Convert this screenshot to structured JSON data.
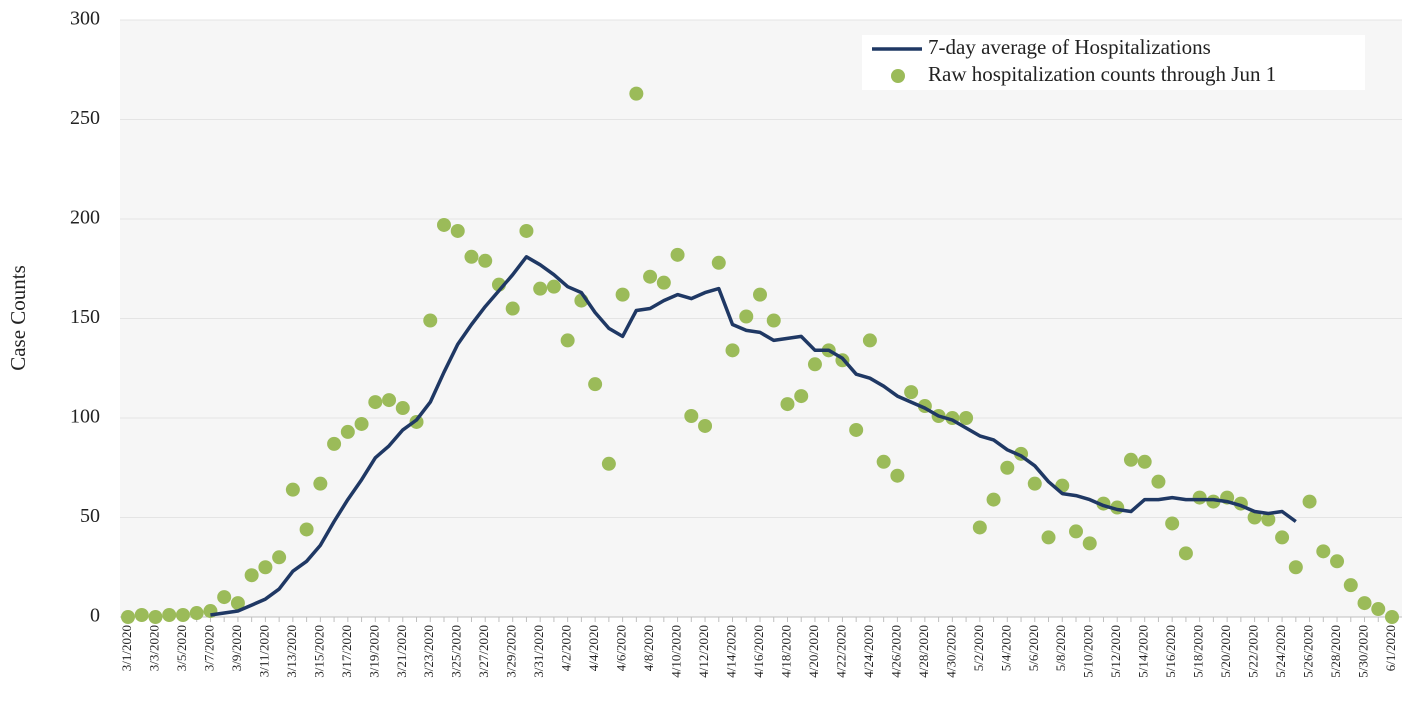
{
  "chart_data": {
    "type": "line",
    "y_label": "Case Counts",
    "categories": [
      "3/1/2020",
      null,
      "3/3/2020",
      null,
      "3/5/2020",
      null,
      "3/7/2020",
      null,
      "3/9/2020",
      null,
      "3/11/2020",
      null,
      "3/13/2020",
      null,
      "3/15/2020",
      null,
      "3/17/2020",
      null,
      "3/19/2020",
      null,
      "3/21/2020",
      null,
      "3/23/2020",
      null,
      "3/25/2020",
      null,
      "3/27/2020",
      null,
      "3/29/2020",
      null,
      "3/31/2020",
      null,
      "4/2/2020",
      null,
      "4/4/2020",
      null,
      "4/6/2020",
      null,
      "4/8/2020",
      null,
      "4/10/2020",
      null,
      "4/12/2020",
      null,
      "4/14/2020",
      null,
      "4/16/2020",
      null,
      "4/18/2020",
      null,
      "4/20/2020",
      null,
      "4/22/2020",
      null,
      "4/24/2020",
      null,
      "4/26/2020",
      null,
      "4/28/2020",
      null,
      "4/30/2020",
      null,
      "5/2/2020",
      null,
      "5/4/2020",
      null,
      "5/6/2020",
      null,
      "5/8/2020",
      null,
      "5/10/2020",
      null,
      "5/12/2020",
      null,
      "5/14/2020",
      null,
      "5/16/2020",
      null,
      "5/18/2020",
      null,
      "5/20/2020",
      null,
      "5/22/2020",
      null,
      "5/24/2020",
      null,
      "5/26/2020",
      null,
      "5/28/2020",
      null,
      "5/30/2020",
      null,
      "6/1/2020"
    ],
    "series": [
      {
        "name": "7-day average of Hospitalizations",
        "color": "#1f3864",
        "style": "line",
        "values": [
          null,
          null,
          null,
          null,
          null,
          null,
          1,
          2,
          3,
          6,
          9,
          14,
          23,
          28,
          36,
          48,
          59,
          69,
          80,
          86,
          94,
          99,
          108,
          123,
          137,
          147,
          156,
          164,
          172,
          181,
          177,
          172,
          166,
          163,
          153,
          145,
          141,
          154,
          155,
          159,
          162,
          160,
          163,
          165,
          147,
          144,
          143,
          139,
          140,
          141,
          134,
          134,
          130,
          122,
          120,
          116,
          111,
          108,
          105,
          101,
          99,
          95,
          91,
          89,
          84,
          81,
          76,
          68,
          62,
          61,
          59,
          56,
          54,
          53,
          59,
          59,
          60,
          59,
          59,
          59,
          58,
          56,
          53,
          52,
          53,
          48,
          null,
          null,
          null,
          null,
          null,
          null,
          null
        ]
      },
      {
        "name": "Raw hospitalization counts through Jun 1",
        "color": "#9bbb59",
        "style": "scatter",
        "values": [
          0,
          1,
          0,
          1,
          1,
          2,
          3,
          10,
          7,
          21,
          25,
          30,
          64,
          44,
          67,
          87,
          93,
          97,
          108,
          109,
          105,
          98,
          149,
          197,
          194,
          181,
          179,
          167,
          155,
          194,
          165,
          166,
          139,
          159,
          117,
          77,
          162,
          263,
          171,
          168,
          182,
          101,
          96,
          178,
          134,
          151,
          162,
          149,
          107,
          111,
          127,
          134,
          129,
          94,
          139,
          78,
          71,
          113,
          106,
          101,
          100,
          100,
          45,
          59,
          75,
          82,
          67,
          40,
          66,
          43,
          37,
          57,
          55,
          79,
          78,
          68,
          47,
          32,
          60,
          58,
          60,
          57,
          50,
          49,
          40,
          25,
          58,
          33,
          28,
          16,
          7,
          4,
          0
        ]
      }
    ],
    "ylim": [
      0,
      300
    ],
    "yticks": [
      0,
      50,
      100,
      150,
      200,
      250,
      300
    ],
    "grid": true,
    "legend": "upper right"
  }
}
